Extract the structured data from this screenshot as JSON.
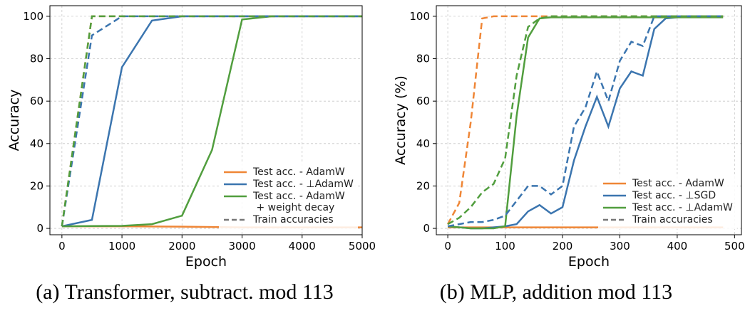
{
  "chart_data": [
    {
      "type": "line",
      "caption": "(a) Transformer, subtract. mod 113",
      "xlabel": "Epoch",
      "ylabel": "Accuracy",
      "xlim": [
        -200,
        5000
      ],
      "ylim": [
        -3,
        105
      ],
      "xticks": [
        0,
        1000,
        2000,
        3000,
        4000,
        5000
      ],
      "yticks": [
        0,
        20,
        40,
        60,
        80,
        100
      ],
      "grid": true,
      "legend": "lower right",
      "legend_extra": {
        "name": "Train accuracies",
        "color": "#777777"
      },
      "series": [
        {
          "name": "Test acc. - AdamW",
          "color": "#ef8636",
          "x": [
            0,
            1000,
            2000,
            3000,
            4000,
            5000
          ],
          "values": [
            1,
            1,
            0.8,
            0.5,
            0.5,
            0.5
          ]
        },
        {
          "name": "Test acc. - ⊥AdamW",
          "color": "#3b75af",
          "x": [
            0,
            500,
            1000,
            1500,
            2000,
            2500,
            3000,
            3500,
            4000,
            4500,
            5000
          ],
          "values": [
            1,
            4,
            76,
            98,
            100,
            100,
            100,
            100,
            100,
            100,
            100
          ]
        },
        {
          "name": "Test acc. - AdamW\n + weight decay",
          "color": "#519e3e",
          "x": [
            0,
            1000,
            1500,
            2000,
            2500,
            3000,
            3500,
            4000,
            4500,
            5000
          ],
          "values": [
            1,
            1.2,
            2,
            6,
            37,
            98.5,
            100,
            100,
            100,
            100
          ]
        },
        {
          "color": "#ef8636",
          "dashed": true,
          "x": [
            0,
            500,
            1000,
            2000,
            3000,
            4000,
            5000
          ],
          "values": [
            1,
            100,
            100,
            100,
            100,
            100,
            100
          ]
        },
        {
          "color": "#3b75af",
          "dashed": true,
          "x": [
            0,
            500,
            1000,
            2000,
            3000,
            4000,
            5000
          ],
          "values": [
            1,
            91,
            100,
            100,
            100,
            100,
            100
          ]
        },
        {
          "color": "#519e3e",
          "dashed": true,
          "x": [
            0,
            500,
            1000,
            2000,
            3000,
            4000,
            5000
          ],
          "values": [
            1,
            100,
            100,
            100,
            100,
            100,
            100
          ]
        }
      ]
    },
    {
      "type": "line",
      "caption": "(b) MLP, addition mod 113",
      "xlabel": "Epoch",
      "ylabel": "Accuracy (%)",
      "xlim": [
        -20,
        512
      ],
      "ylim": [
        -3,
        105
      ],
      "xticks": [
        0,
        100,
        200,
        300,
        400,
        500
      ],
      "yticks": [
        0,
        20,
        40,
        60,
        80,
        100
      ],
      "grid": true,
      "legend": "lower right",
      "legend_extra": {
        "name": "Train accuracies",
        "color": "#777777"
      },
      "series": [
        {
          "name": "Test acc. - AdamW",
          "color": "#ef8636",
          "x": [
            0,
            100,
            200,
            300,
            400,
            480
          ],
          "values": [
            0.5,
            0.5,
            0.5,
            0.5,
            0.5,
            0.5
          ]
        },
        {
          "name": "Test acc. - ⊥SGD",
          "color": "#3b75af",
          "x": [
            0,
            20,
            40,
            60,
            80,
            100,
            120,
            140,
            160,
            180,
            200,
            220,
            240,
            260,
            280,
            300,
            320,
            340,
            360,
            380,
            400,
            420,
            440,
            460,
            480
          ],
          "values": [
            1,
            0.5,
            0,
            0,
            0.5,
            1,
            2,
            8,
            11,
            7,
            10,
            32,
            48,
            62,
            48,
            66,
            74,
            72,
            94,
            99,
            99.5,
            100,
            100,
            100,
            100
          ]
        },
        {
          "name": "Test acc. - ⊥AdamW",
          "color": "#519e3e",
          "x": [
            0,
            20,
            40,
            60,
            80,
            100,
            120,
            140,
            160,
            180,
            200,
            300,
            400,
            480
          ],
          "values": [
            1,
            0.5,
            0,
            0,
            0,
            1,
            53,
            90,
            99,
            99.5,
            99.5,
            99.5,
            99.5,
            99.5
          ]
        },
        {
          "color": "#ef8636",
          "dashed": true,
          "x": [
            0,
            20,
            40,
            60,
            80,
            100,
            200,
            300,
            400,
            480
          ],
          "values": [
            2,
            12,
            50,
            99,
            100,
            100,
            100,
            100,
            100,
            100
          ]
        },
        {
          "color": "#3b75af",
          "dashed": true,
          "x": [
            0,
            20,
            40,
            60,
            80,
            100,
            120,
            140,
            160,
            180,
            200,
            220,
            240,
            260,
            280,
            300,
            320,
            340,
            360,
            380,
            400,
            480
          ],
          "values": [
            1,
            2,
            3,
            3,
            4,
            6,
            13,
            20,
            20,
            16,
            20,
            48,
            57,
            74,
            60,
            79,
            88,
            86,
            100,
            100,
            100,
            100
          ]
        },
        {
          "color": "#519e3e",
          "dashed": true,
          "x": [
            0,
            20,
            40,
            60,
            80,
            100,
            120,
            140,
            160,
            180,
            200,
            300,
            400,
            480
          ],
          "values": [
            2,
            5,
            10,
            17,
            21,
            33,
            72,
            95,
            99,
            100,
            100,
            100,
            100,
            100
          ]
        }
      ]
    }
  ]
}
